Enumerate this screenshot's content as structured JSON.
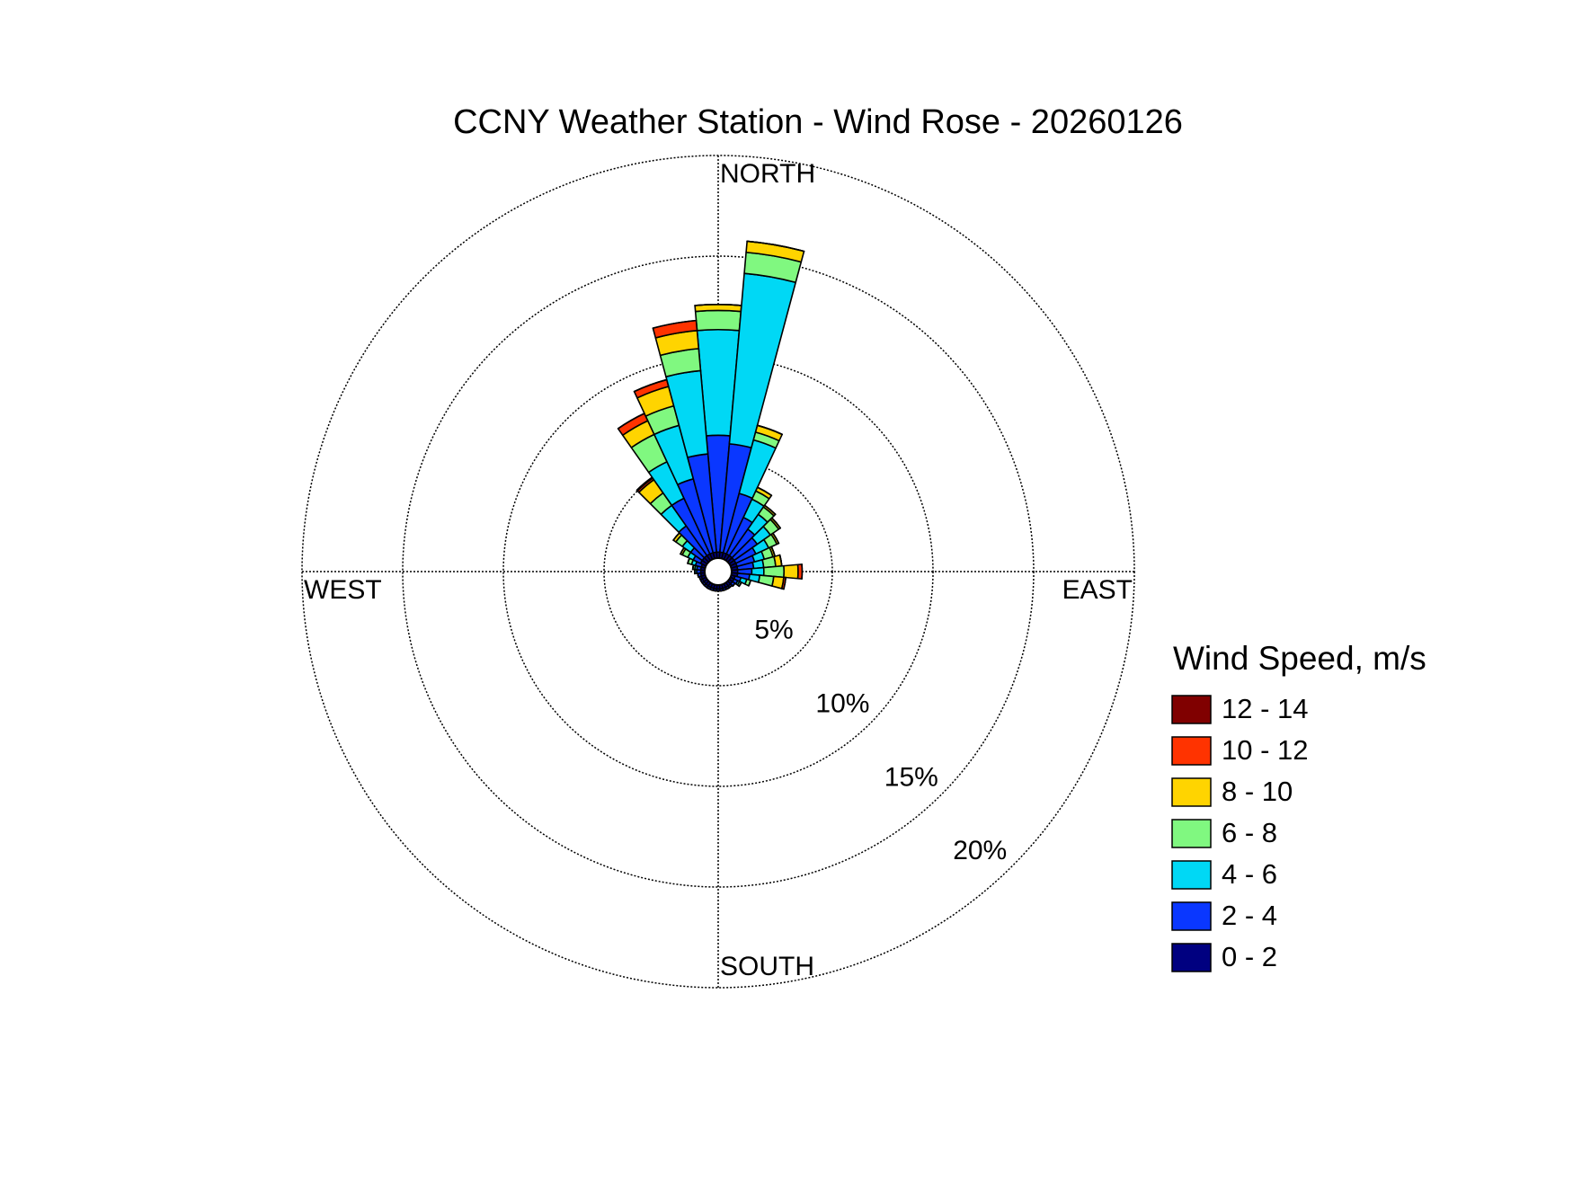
{
  "chart_data": {
    "type": "windrose",
    "title": "CCNY Weather Station - Wind Rose - 20260126",
    "direction_labels": [
      "NORTH",
      "EAST",
      "SOUTH",
      "WEST"
    ],
    "x": [
      0,
      10,
      20,
      30,
      40,
      50,
      60,
      70,
      80,
      90,
      100,
      110,
      120,
      130,
      140,
      150,
      160,
      170,
      180,
      190,
      200,
      210,
      220,
      230,
      240,
      250,
      260,
      270,
      280,
      290,
      300,
      310,
      320,
      330,
      340,
      350
    ],
    "rlim": [
      0,
      20
    ],
    "rticks": [
      {
        "value": 5,
        "label": "5%"
      },
      {
        "value": 10,
        "label": "10%"
      },
      {
        "value": 15,
        "label": "15%"
      },
      {
        "value": 20,
        "label": "20%"
      }
    ],
    "legend_title": "Wind Speed, m/s",
    "series": [
      {
        "name": "0 - 2",
        "color": "#000080",
        "values": [
          0.3,
          0.3,
          0.3,
          0.3,
          0.3,
          0.3,
          0.3,
          0.3,
          0.3,
          0.3,
          0.3,
          0.2,
          0.2,
          0.2,
          0.2,
          0.2,
          0.2,
          0.2,
          0.2,
          0.2,
          0.2,
          0.2,
          0.2,
          0.2,
          0.2,
          0.2,
          0.2,
          0.2,
          0.2,
          0.2,
          0.3,
          0.3,
          0.3,
          0.3,
          0.3,
          0.3
        ]
      },
      {
        "name": "2 - 4",
        "color": "#0a37ff",
        "values": [
          5.8,
          5.4,
          3.05,
          2.0,
          1.6,
          1.4,
          1.1,
          0.9,
          0.8,
          0.7,
          0.6,
          0.3,
          0.2,
          0.15,
          0.1,
          0.1,
          0.1,
          0.1,
          0.1,
          0.1,
          0.1,
          0.1,
          0.1,
          0.1,
          0.1,
          0.1,
          0.15,
          0.2,
          0.2,
          0.3,
          0.4,
          0.7,
          1.8,
          3.05,
          3.8,
          4.9
        ]
      },
      {
        "name": "4 - 6",
        "color": "#00d8f5",
        "values": [
          5.25,
          8.5,
          2.75,
          1.0,
          0.9,
          0.8,
          0.7,
          0.5,
          0.5,
          0.6,
          0.5,
          0.3,
          0.1,
          0,
          0,
          0,
          0,
          0,
          0,
          0,
          0,
          0,
          0,
          0,
          0,
          0,
          0,
          0.1,
          0.1,
          0.2,
          0.3,
          0.5,
          1.25,
          2.0,
          2.75,
          4.15
        ]
      },
      {
        "name": "6 - 8",
        "color": "#80f880",
        "values": [
          0.95,
          1.05,
          0.4,
          0.45,
          0.45,
          0.5,
          0.45,
          0.45,
          0.6,
          1.0,
          0.7,
          0.2,
          0.1,
          0,
          0,
          0,
          0,
          0,
          0,
          0,
          0,
          0,
          0,
          0,
          0,
          0,
          0,
          0,
          0.1,
          0.2,
          0.3,
          0.4,
          0.75,
          1.5,
          1.0,
          1.1
        ]
      },
      {
        "name": "8 - 10",
        "color": "#ffd400",
        "values": [
          0.3,
          0.55,
          0.35,
          0.2,
          0.1,
          0.1,
          0.1,
          0.1,
          0.3,
          0.7,
          0.5,
          0,
          0,
          0,
          0,
          0,
          0,
          0,
          0,
          0,
          0,
          0,
          0,
          0,
          0,
          0,
          0,
          0,
          0,
          0,
          0.1,
          0.15,
          0.8,
          0.75,
          1.0,
          0.9
        ]
      },
      {
        "name": "10 - 12",
        "color": "#ff3300",
        "values": [
          0,
          0,
          0,
          0,
          0,
          0,
          0,
          0,
          0,
          0.2,
          0.1,
          0,
          0,
          0,
          0,
          0,
          0,
          0,
          0,
          0,
          0,
          0,
          0,
          0,
          0,
          0,
          0,
          0,
          0,
          0,
          0,
          0,
          0.1,
          0.4,
          0.35,
          0.5
        ]
      },
      {
        "name": "12 - 14",
        "color": "#800000",
        "values": [
          0,
          0,
          0,
          0,
          0,
          0,
          0,
          0,
          0,
          0,
          0,
          0,
          0,
          0,
          0,
          0,
          0,
          0,
          0,
          0,
          0,
          0,
          0,
          0,
          0,
          0,
          0,
          0,
          0,
          0,
          0,
          0,
          0.05,
          0,
          0,
          0
        ]
      }
    ]
  }
}
